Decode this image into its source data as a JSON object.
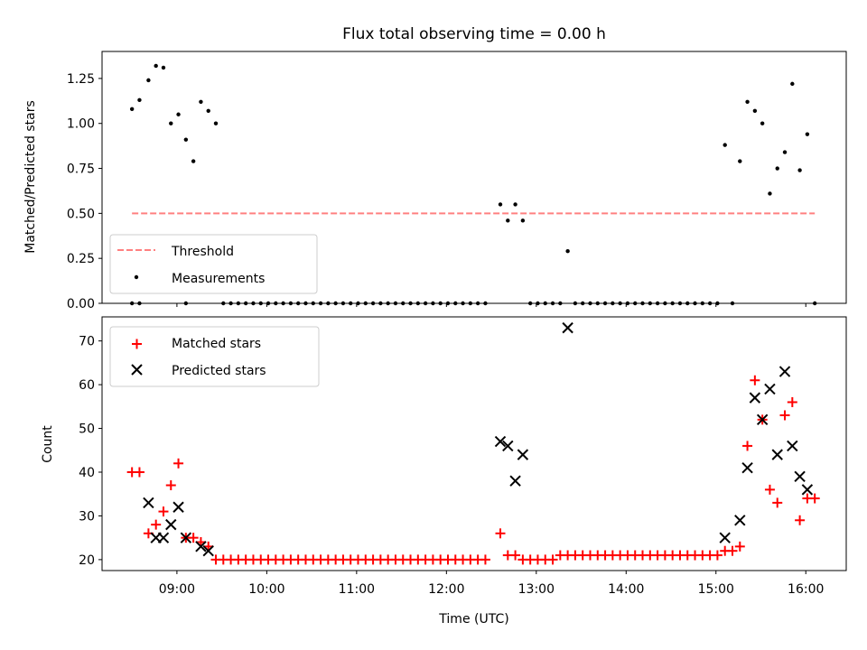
{
  "figure": {
    "title": "Flux total observing time = 0.00 h",
    "xlabel": "Time (UTC)",
    "x_ticks": [
      "09:00",
      "10:00",
      "11:00",
      "12:00",
      "13:00",
      "14:00",
      "15:00",
      "16:00"
    ]
  },
  "chart_data": [
    {
      "type": "scatter",
      "title": "Flux total observing time = 0.00 h",
      "ylabel": "Matched/Predicted stars",
      "xlim": [
        "08:10",
        "16:27"
      ],
      "ylim": [
        0,
        1.4
      ],
      "yticks": [
        "0.00",
        "0.25",
        "0.50",
        "0.75",
        "1.00",
        "1.25"
      ],
      "legend": {
        "placement": "lower-left",
        "entries": [
          "Threshold",
          "Measurements"
        ]
      },
      "threshold": {
        "name": "Threshold",
        "value": 0.5,
        "x_start": "08:30",
        "x_end": "16:06",
        "color": "#ff8080",
        "style": "dashed"
      },
      "series": [
        {
          "name": "Measurements",
          "color": "#000000",
          "x": [
            "08:30",
            "08:35",
            "08:41",
            "08:46",
            "08:51",
            "08:56",
            "09:01",
            "09:06",
            "09:11",
            "09:16",
            "09:21",
            "09:26",
            "12:36",
            "12:41",
            "12:46",
            "12:51",
            "13:21",
            "15:06",
            "15:16",
            "15:21",
            "15:26",
            "15:31",
            "15:36",
            "15:41",
            "15:46",
            "15:51",
            "15:56",
            "16:01"
          ],
          "y": [
            1.08,
            1.13,
            1.24,
            1.32,
            1.31,
            1.0,
            1.05,
            0.91,
            0.79,
            1.12,
            1.07,
            1.0,
            0.55,
            0.46,
            0.55,
            0.46,
            0.29,
            0.88,
            0.79,
            1.12,
            1.07,
            1.0,
            0.61,
            0.75,
            0.84,
            1.22,
            0.74,
            0.94
          ],
          "zeros_x": [
            "08:30",
            "08:35",
            "09:06",
            "09:31",
            "09:36",
            "09:41",
            "09:46",
            "09:51",
            "09:56",
            "10:01",
            "10:06",
            "10:11",
            "10:16",
            "10:21",
            "10:26",
            "10:31",
            "10:36",
            "10:41",
            "10:46",
            "10:51",
            "10:56",
            "11:01",
            "11:06",
            "11:11",
            "11:16",
            "11:21",
            "11:26",
            "11:31",
            "11:36",
            "11:41",
            "11:46",
            "11:51",
            "11:56",
            "12:01",
            "12:06",
            "12:11",
            "12:16",
            "12:21",
            "12:26",
            "12:56",
            "13:01",
            "13:06",
            "13:11",
            "13:16",
            "13:26",
            "13:31",
            "13:36",
            "13:41",
            "13:46",
            "13:51",
            "13:56",
            "14:01",
            "14:06",
            "14:11",
            "14:16",
            "14:21",
            "14:26",
            "14:31",
            "14:36",
            "14:41",
            "14:46",
            "14:51",
            "14:56",
            "15:01",
            "15:11",
            "16:06"
          ]
        }
      ]
    },
    {
      "type": "scatter",
      "ylabel": "Count",
      "xlabel": "Time (UTC)",
      "xlim": [
        "08:10",
        "16:27"
      ],
      "ylim": [
        17.5,
        75.5
      ],
      "yticks": [
        "20",
        "30",
        "40",
        "50",
        "60",
        "70"
      ],
      "legend": {
        "placement": "top-left",
        "entries": [
          "Matched stars",
          "Predicted stars"
        ]
      },
      "series": [
        {
          "name": "Matched stars",
          "marker": "+",
          "color": "#ff0000",
          "x": [
            "08:30",
            "08:35",
            "08:41",
            "08:46",
            "08:51",
            "08:56",
            "09:01",
            "09:06",
            "09:11",
            "09:16",
            "09:21",
            "09:26",
            "09:31",
            "09:36",
            "09:41",
            "09:46",
            "09:51",
            "09:56",
            "10:01",
            "10:06",
            "10:11",
            "10:16",
            "10:21",
            "10:26",
            "10:31",
            "10:36",
            "10:41",
            "10:46",
            "10:51",
            "10:56",
            "11:01",
            "11:06",
            "11:11",
            "11:16",
            "11:21",
            "11:26",
            "11:31",
            "11:36",
            "11:41",
            "11:46",
            "11:51",
            "11:56",
            "12:01",
            "12:06",
            "12:11",
            "12:16",
            "12:21",
            "12:26",
            "12:36",
            "12:41",
            "12:46",
            "12:51",
            "12:56",
            "13:01",
            "13:06",
            "13:11",
            "13:16",
            "13:21",
            "13:26",
            "13:31",
            "13:36",
            "13:41",
            "13:46",
            "13:51",
            "13:56",
            "14:01",
            "14:06",
            "14:11",
            "14:16",
            "14:21",
            "14:26",
            "14:31",
            "14:36",
            "14:41",
            "14:46",
            "14:51",
            "14:56",
            "15:01",
            "15:06",
            "15:11",
            "15:16",
            "15:21",
            "15:26",
            "15:31",
            "15:36",
            "15:41",
            "15:46",
            "15:51",
            "15:56",
            "16:01",
            "16:06"
          ],
          "y": [
            40,
            40,
            26,
            28,
            31,
            37,
            42,
            25,
            25,
            24,
            23,
            20,
            20,
            20,
            20,
            20,
            20,
            20,
            20,
            20,
            20,
            20,
            20,
            20,
            20,
            20,
            20,
            20,
            20,
            20,
            20,
            20,
            20,
            20,
            20,
            20,
            20,
            20,
            20,
            20,
            20,
            20,
            20,
            20,
            20,
            20,
            20,
            20,
            26,
            21,
            21,
            20,
            20,
            20,
            20,
            20,
            21,
            21,
            21,
            21,
            21,
            21,
            21,
            21,
            21,
            21,
            21,
            21,
            21,
            21,
            21,
            21,
            21,
            21,
            21,
            21,
            21,
            21,
            22,
            22,
            23,
            46,
            61,
            52,
            36,
            33,
            53,
            56,
            29,
            34,
            34
          ]
        },
        {
          "name": "Predicted stars",
          "marker": "x",
          "color": "#000000",
          "x": [
            "08:41",
            "08:46",
            "08:51",
            "08:56",
            "09:01",
            "09:06",
            "09:16",
            "09:21",
            "12:36",
            "12:41",
            "12:46",
            "12:51",
            "13:21",
            "15:06",
            "15:16",
            "15:21",
            "15:26",
            "15:31",
            "15:36",
            "15:41",
            "15:46",
            "15:51",
            "15:56",
            "16:01"
          ],
          "y": [
            33,
            25,
            25,
            28,
            32,
            25,
            23,
            22,
            47,
            46,
            38,
            44,
            73,
            25,
            29,
            41,
            57,
            52,
            59,
            44,
            63,
            46,
            39,
            36
          ]
        }
      ]
    }
  ]
}
